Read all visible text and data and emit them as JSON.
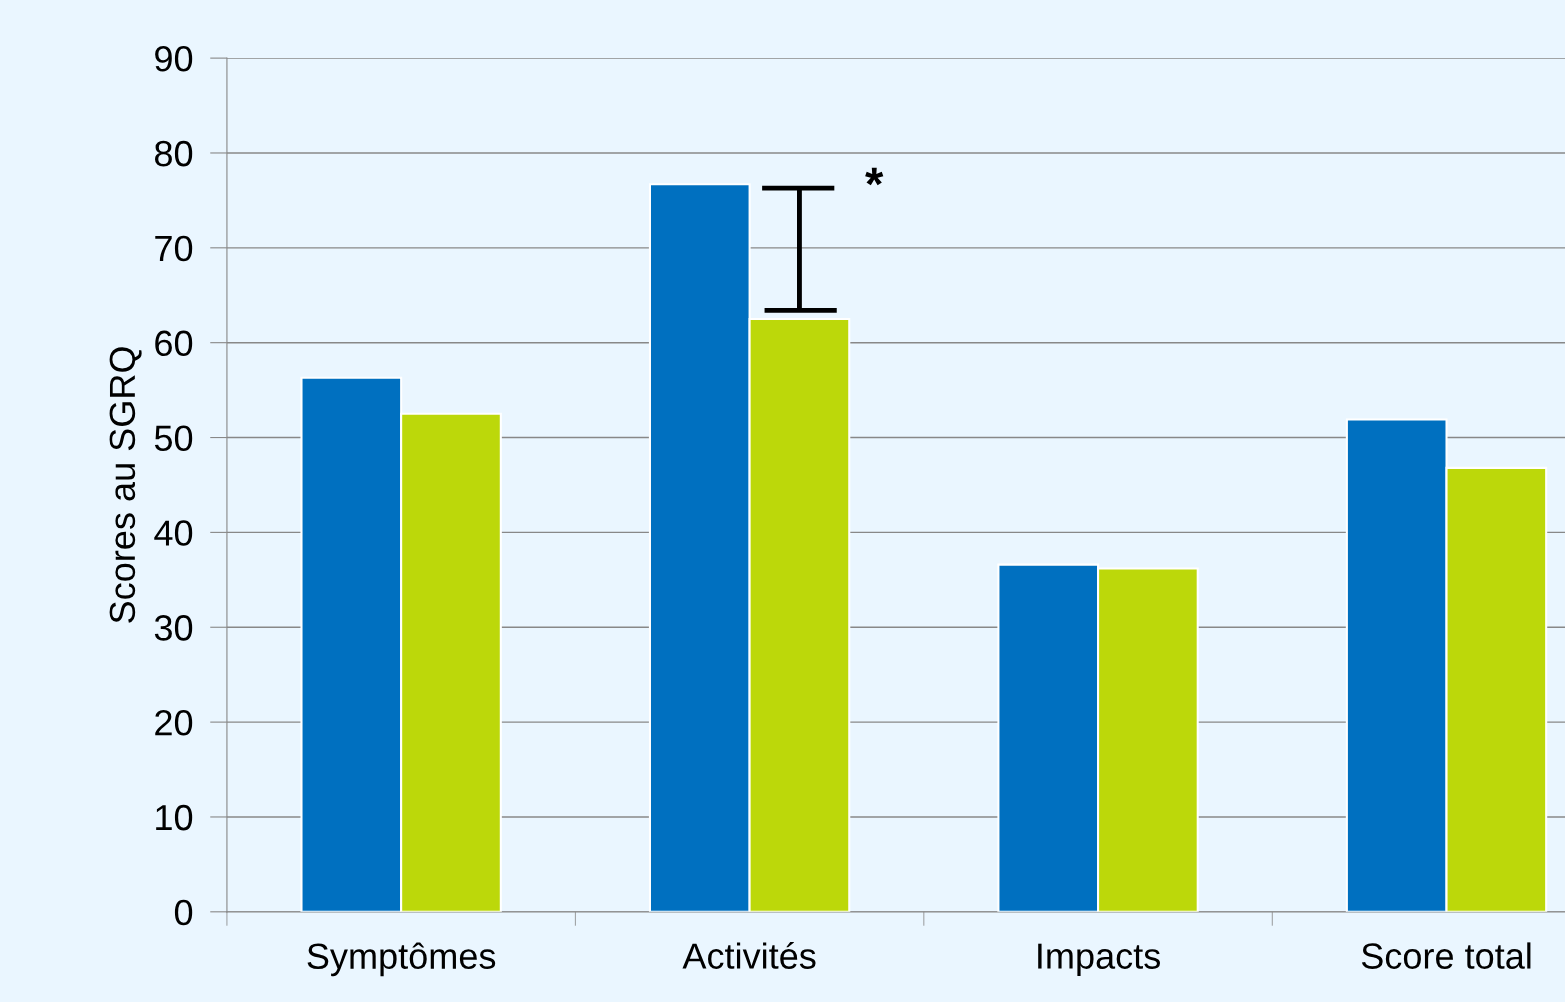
{
  "chart_data": {
    "type": "bar",
    "ylabel": "Scores au SGRQ",
    "categories": [
      "Symptômes",
      "Activités",
      "Impacts",
      "Score total"
    ],
    "series": [
      {
        "color": "#0070c0",
        "values": [
          56.3,
          76.7,
          36.6,
          51.9
        ]
      },
      {
        "color": "#bcd80a",
        "values": [
          52.5,
          62.5,
          36.2,
          46.8
        ]
      }
    ],
    "ylim": [
      0,
      90
    ],
    "yticks": [
      0,
      10,
      20,
      30,
      40,
      50,
      60,
      70,
      80,
      90
    ],
    "grid": "y",
    "legend": false,
    "annotations": [
      {
        "text": "*",
        "x": "Activités",
        "y": 76.3
      }
    ]
  }
}
